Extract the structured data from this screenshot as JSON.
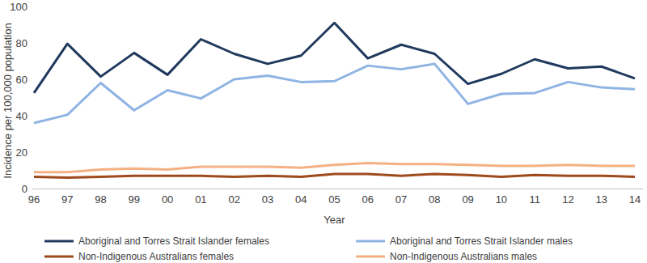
{
  "chart_data": {
    "type": "line",
    "x_label": "Year",
    "y_label": "Incidence per 100,000 population",
    "categories": [
      "96",
      "97",
      "98",
      "99",
      "00",
      "01",
      "02",
      "03",
      "04",
      "05",
      "06",
      "07",
      "08",
      "09",
      "10",
      "11",
      "12",
      "13",
      "14"
    ],
    "series": [
      {
        "name": "Aboriginal and Torres Strait Islander females",
        "color": "#203a5e",
        "values": [
          52.5,
          79.5,
          61.5,
          74.5,
          62.5,
          82,
          74,
          68.5,
          73,
          91,
          71.5,
          79,
          74,
          57.5,
          63,
          71,
          66,
          67,
          60.5
        ]
      },
      {
        "name": "Aboriginal and Torres Strait Islander males",
        "color": "#8fb4e3",
        "values": [
          36,
          40.5,
          58,
          43,
          54,
          49.5,
          60,
          62,
          58.5,
          59,
          67.5,
          65.5,
          68.5,
          46.5,
          52,
          52.5,
          58.5,
          55.5,
          54.5
        ]
      },
      {
        "name": "Non-Indigenous Australians females",
        "color": "#9e4a1c",
        "values": [
          6.5,
          6,
          6.5,
          7,
          7,
          7,
          6.5,
          7,
          6.5,
          8,
          8,
          7,
          8,
          7.5,
          6.5,
          7.5,
          7,
          7,
          6.5
        ]
      },
      {
        "name": "Non-Indigenous Australians males",
        "color": "#f4b183",
        "values": [
          9,
          9,
          10.5,
          11,
          10.5,
          12,
          12,
          12,
          11.5,
          13,
          14,
          13.5,
          13.5,
          13,
          12.5,
          12.5,
          13,
          12.5,
          12.5
        ]
      }
    ],
    "ylim": [
      0,
      100
    ],
    "yticks": [
      0,
      20,
      40,
      60,
      80,
      100
    ],
    "grid": false,
    "legend": "bottom"
  }
}
